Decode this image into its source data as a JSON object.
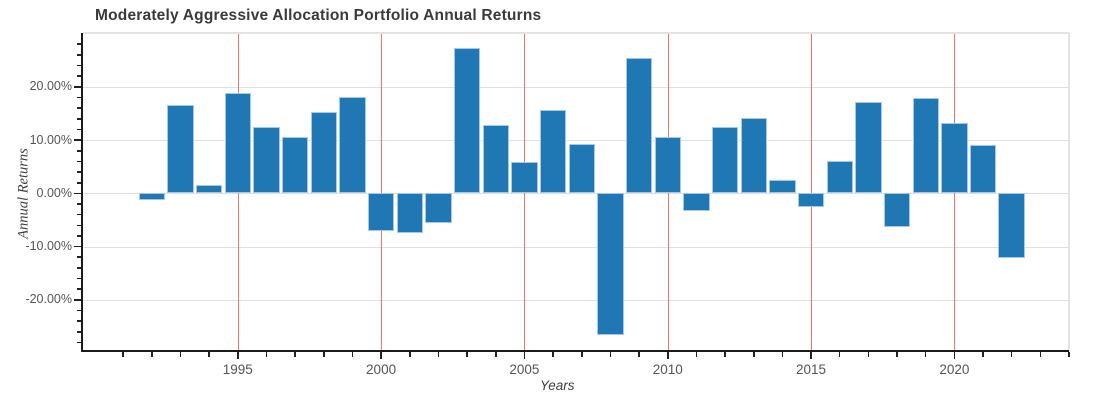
{
  "chart_data": {
    "type": "bar",
    "title": "Moderately Aggressive Allocation Portfolio Annual Returns",
    "xlabel": "Years",
    "ylabel": "Annual Returns",
    "categories": [
      1992,
      1993,
      1994,
      1995,
      1996,
      1997,
      1998,
      1999,
      2000,
      2001,
      2002,
      2003,
      2004,
      2005,
      2006,
      2007,
      2008,
      2009,
      2010,
      2011,
      2012,
      2013,
      2014,
      2015,
      2016,
      2017,
      2018,
      2019,
      2020,
      2021,
      2022
    ],
    "values": [
      -1.2,
      16.5,
      1.5,
      18.9,
      12.5,
      10.6,
      15.3,
      18.0,
      -7.1,
      -7.5,
      -5.6,
      27.3,
      12.8,
      5.9,
      15.6,
      9.3,
      -26.5,
      25.4,
      10.6,
      -3.3,
      12.5,
      14.1,
      2.6,
      -2.5,
      6.1,
      17.2,
      -6.4,
      17.9,
      13.2,
      9.1,
      -12.2
    ],
    "bar_width_years": 0.92,
    "xlim": [
      1989.6,
      2024.0
    ],
    "ylim": [
      -29.4,
      30.1
    ],
    "grid": true,
    "legend": null,
    "x_major_ticks": [
      {
        "value": 1995,
        "label": "1995"
      },
      {
        "value": 2000,
        "label": "2000"
      },
      {
        "value": 2005,
        "label": "2005"
      },
      {
        "value": 2010,
        "label": "2010"
      },
      {
        "value": 2015,
        "label": "2015"
      },
      {
        "value": 2020,
        "label": "2020"
      }
    ],
    "x_minor_ticks": {
      "start": 1990,
      "end": 2024,
      "step": 1
    },
    "y_major_ticks": [
      {
        "value": 20,
        "label": "20.00%"
      },
      {
        "value": 10,
        "label": "10.00%"
      },
      {
        "value": 0,
        "label": "0.00%"
      },
      {
        "value": -10,
        "label": "-10.00%"
      },
      {
        "value": -20,
        "label": "-20.00%"
      }
    ],
    "y_minor_ticks": {
      "start": -28,
      "end": 30,
      "step": 2
    },
    "colors": {
      "bar_fill": "#1f77b4",
      "bar_edge": "#a5c8e8",
      "h_grid": "#e0e0e0",
      "v_grid": "#ef7862",
      "spine_dark": "#1a1a1a",
      "spine_light": "#e3e3e3",
      "tick_mark": "#222222",
      "title": "#3a3a3a",
      "tick_label": "#555555",
      "axis_label": "#3f3f3f"
    }
  }
}
